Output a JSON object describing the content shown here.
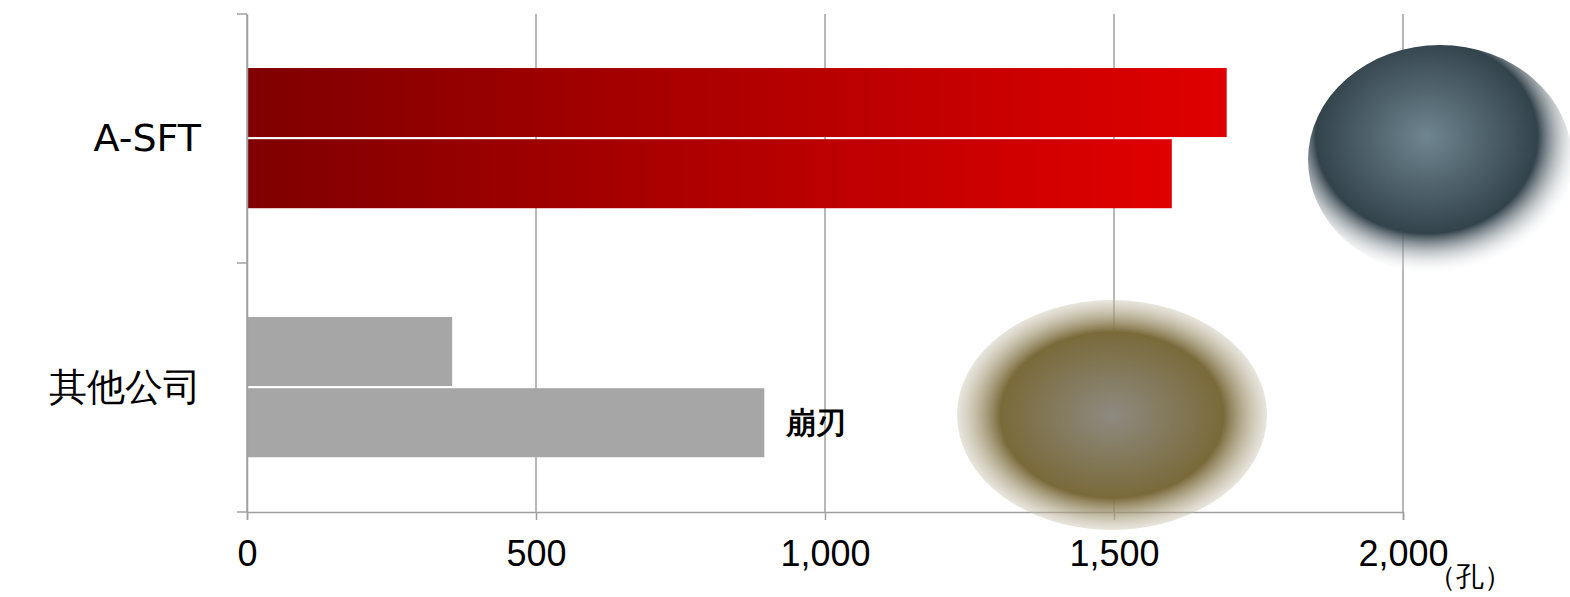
{
  "chart_data": {
    "type": "bar",
    "orientation": "horizontal",
    "categories": [
      "A-SFT",
      "其他公司"
    ],
    "series": [
      {
        "values": [
          1695,
          355
        ]
      },
      {
        "values": [
          1600,
          895
        ]
      }
    ],
    "colors": [
      "#e00000",
      "#a6a6a6"
    ],
    "xlim": [
      0,
      2000
    ],
    "xticks": [
      0,
      500,
      {
        "value": 1000,
        "label": "1,000"
      },
      {
        "value": 1500,
        "label": "1,500"
      },
      {
        "value": 2000,
        "label": "2,000"
      }
    ],
    "x_label": "（孔）",
    "grid": true,
    "annotations": [
      {
        "text": "崩刃",
        "category": 1,
        "series": 1
      }
    ]
  }
}
